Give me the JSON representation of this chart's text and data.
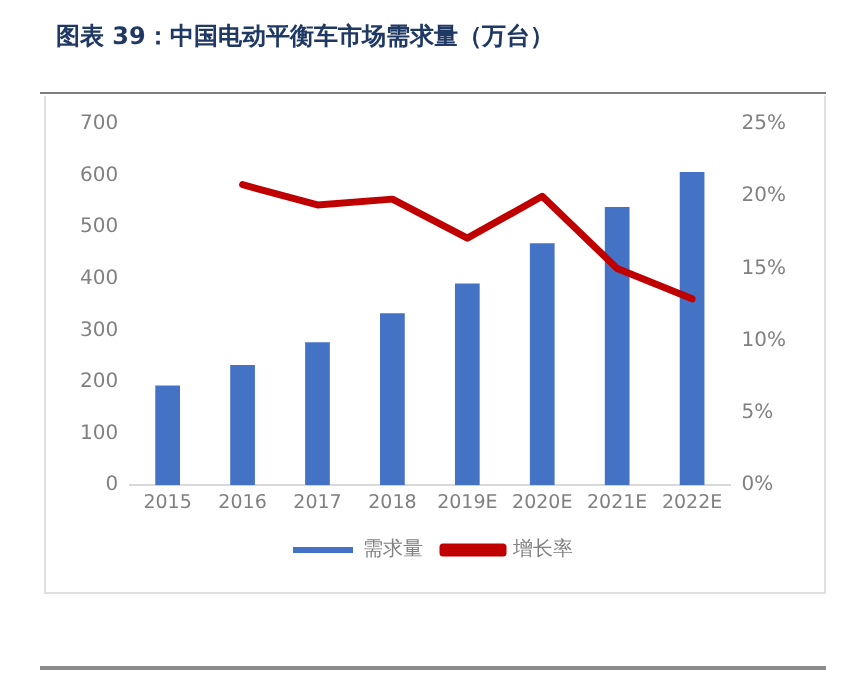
{
  "chart_data": {
    "type": "bar",
    "title": "图表 39：中国电动平衡车市场需求量（万台）",
    "categories": [
      "2015",
      "2016",
      "2017",
      "2018",
      "2019E",
      "2020E",
      "2021E",
      "2022E"
    ],
    "series": [
      {
        "name": "需求量",
        "color": "#4472c4",
        "values": [
          193,
          233,
          277,
          333,
          391,
          469,
          539,
          607
        ]
      },
      {
        "name": "增长率",
        "type": "line",
        "axis": "y2",
        "color": "#c00000",
        "values": [
          null,
          20.8,
          19.4,
          19.8,
          17.1,
          20.0,
          15.0,
          12.9
        ]
      }
    ],
    "ylim": [
      0,
      700
    ],
    "yticks": [
      0,
      100,
      200,
      300,
      400,
      500,
      600,
      700
    ],
    "y2lim": [
      0,
      25
    ],
    "y2ticks": [
      {
        "value": 0,
        "label": "0%"
      },
      {
        "value": 5,
        "label": "5%"
      },
      {
        "value": 10,
        "label": "10%"
      },
      {
        "value": 15,
        "label": "15%"
      },
      {
        "value": 20,
        "label": "20%"
      },
      {
        "value": 25,
        "label": "25%"
      }
    ],
    "grid": false,
    "legend": "bottom",
    "marker": "none",
    "line_style": "solid"
  }
}
